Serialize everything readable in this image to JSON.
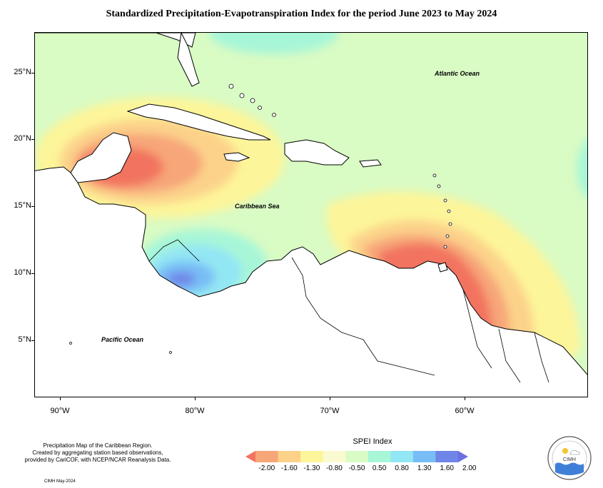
{
  "title": "Standardized Precipitation-Evapotranspiration Index for the period June 2023 to May 2024",
  "axes": {
    "lat_labels": [
      "25°N",
      "20°N",
      "15°N",
      "10°N",
      "5°N"
    ],
    "lon_labels": [
      "90°W",
      "80°W",
      "70°W",
      "60°W"
    ]
  },
  "map_labels": {
    "atlantic": "Atlantic Ocean",
    "caribbean": "Caribbean Sea",
    "pacific": "Pacific Ocean"
  },
  "note": {
    "line1": "Precipitation Map of the Caribbean Region.",
    "line2": "Created by aggregating station based observations,",
    "line3": "provided by CariCOF, with NCEP/NCAR Reanalysis Data."
  },
  "credit": "CIMH May-2024",
  "legend": {
    "title": "SPEI Index",
    "ticks": [
      "-2.00",
      "-1.60",
      "-1.30",
      "-0.80",
      "-0.50",
      "0.50",
      "0.80",
      "1.30",
      "1.60",
      "2.00"
    ],
    "colors": [
      "#f2735f",
      "#f7a679",
      "#fcd28a",
      "#fdf59a",
      "#fafad0",
      "#d9fbc4",
      "#a7f6d8",
      "#93e6f4",
      "#78bdf6",
      "#6f86e8",
      "#6c70e0"
    ]
  },
  "logo": {
    "name": "CIMH"
  }
}
